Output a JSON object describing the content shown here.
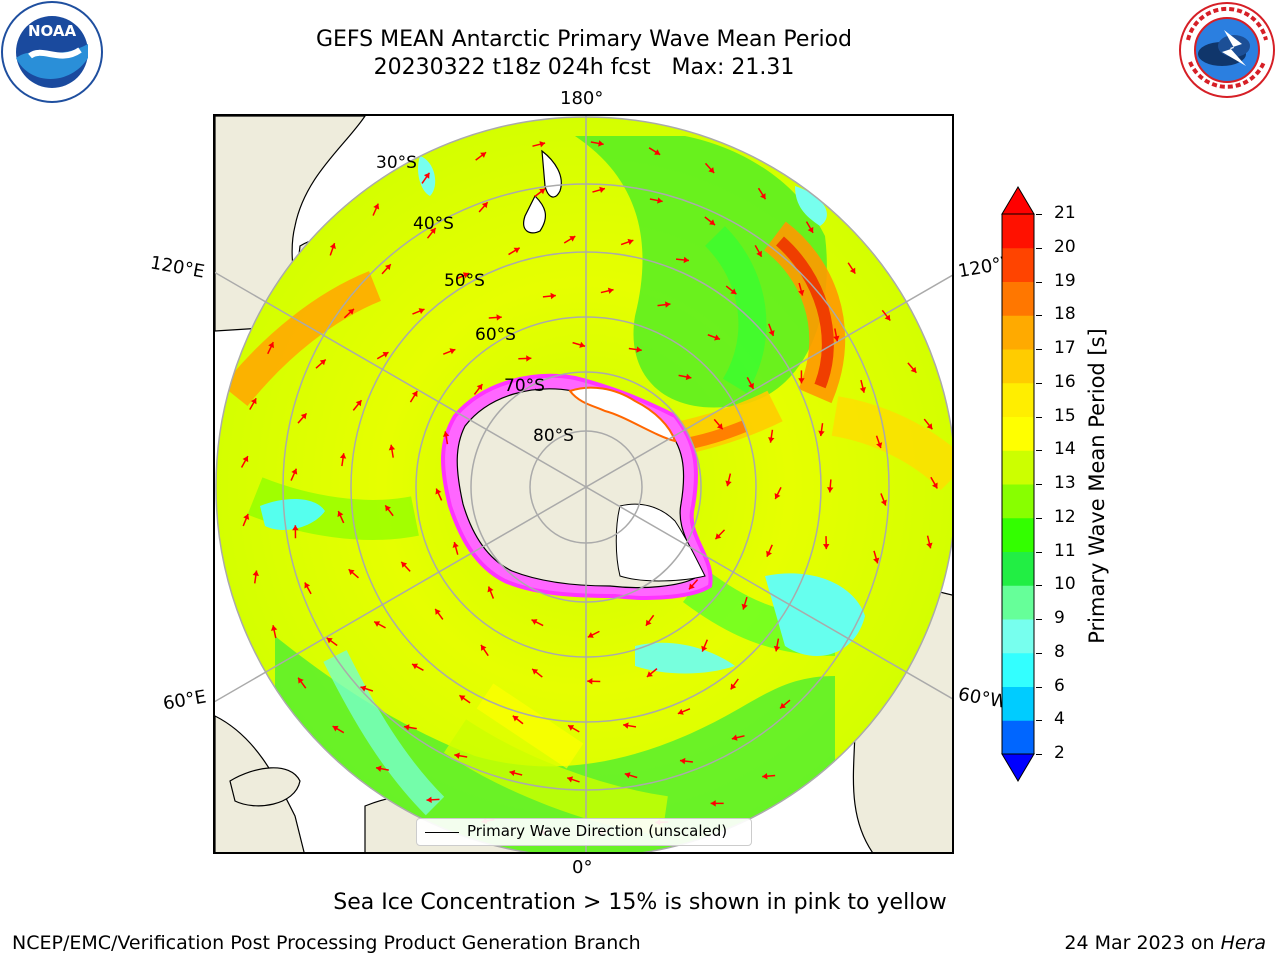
{
  "title": {
    "line1": "GEFS MEAN Antarctic Primary Wave Mean Period",
    "line2": "20230322 t18z 024h fcst   Max: 21.31"
  },
  "logos": {
    "left": {
      "name": "noaa-logo",
      "text": "NOAA"
    },
    "right": {
      "name": "nws-logo",
      "text": "NATIONAL WEATHER SERVICE"
    }
  },
  "map": {
    "projection": "south-polar-stereographic",
    "longitude_labels": {
      "top": "180°",
      "bottom": "0°",
      "left_upper": "120°E",
      "left_lower": "60°E",
      "right_upper": "120°W",
      "right_lower": "60°W"
    },
    "latitude_labels": [
      "30°S",
      "40°S",
      "50°S",
      "60°S",
      "70°S",
      "80°S"
    ],
    "colors": {
      "land": "#eeecdc",
      "coast": "#000000",
      "grid": "#aaaaaa",
      "arrow": "#ff0000",
      "ice_edge": "#ff33ff",
      "ice_fill": "#ffffff"
    },
    "legend": {
      "label": "Primary Wave Direction (unscaled)"
    }
  },
  "colorbar": {
    "label": "Primary Wave Mean Period [s]",
    "ticks": [
      "2",
      "4",
      "6",
      "8",
      "9",
      "10",
      "11",
      "12",
      "13",
      "14",
      "15",
      "16",
      "17",
      "18",
      "19",
      "20",
      "21"
    ],
    "colors": [
      "#0000ff",
      "#0066ff",
      "#00ccff",
      "#33ffff",
      "#77ffee",
      "#66ff99",
      "#22ee44",
      "#33ff00",
      "#88ff00",
      "#ccff00",
      "#ffff00",
      "#ffee00",
      "#ffcc00",
      "#ffaa00",
      "#ff7700",
      "#ff4400",
      "#ff1100",
      "#ff0000"
    ]
  },
  "sea_ice_note": "Sea Ice Concentration > 15% is shown in pink to yellow",
  "footer": {
    "left": "NCEP/EMC/Verification Post Processing Product Generation Branch",
    "right_prefix": "24 Mar 2023 on ",
    "right_machine": "Hera"
  }
}
